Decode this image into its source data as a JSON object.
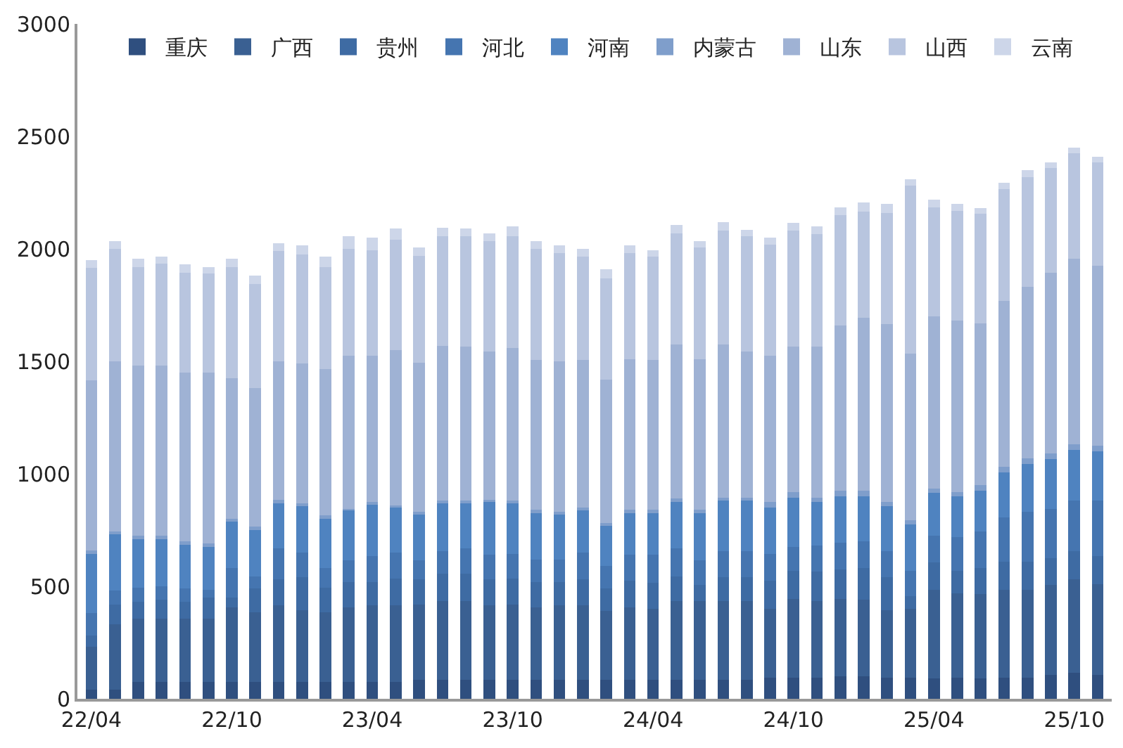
{
  "chart_data": {
    "type": "bar",
    "stacked": true,
    "categories": [
      "22/04",
      null,
      null,
      null,
      null,
      null,
      "22/10",
      null,
      null,
      null,
      null,
      null,
      "23/04",
      null,
      null,
      null,
      null,
      null,
      "23/10",
      null,
      null,
      null,
      null,
      null,
      "24/04",
      null,
      null,
      null,
      null,
      null,
      "24/10",
      null,
      null,
      null,
      null,
      null,
      "25/04",
      null,
      null,
      null,
      null,
      null,
      "25/10",
      null
    ],
    "ylim": [
      0,
      3000
    ],
    "yticks": [
      0,
      500,
      1000,
      1500,
      2000,
      2500,
      3000
    ],
    "legend": "top",
    "series": [
      {
        "name": "重庆",
        "color": "#2f4f7f",
        "values": [
          40,
          40,
          75,
          75,
          75,
          75,
          75,
          75,
          75,
          75,
          75,
          75,
          75,
          75,
          85,
          85,
          85,
          85,
          85,
          85,
          85,
          85,
          85,
          85,
          85,
          85,
          85,
          85,
          85,
          95,
          95,
          95,
          100,
          100,
          95,
          95,
          90,
          95,
          90,
          95,
          95,
          105,
          115,
          105
        ]
      },
      {
        "name": "广西",
        "color": "#3a6092",
        "values": [
          190,
          290,
          280,
          280,
          280,
          280,
          330,
          310,
          340,
          320,
          310,
          330,
          340,
          340,
          335,
          350,
          350,
          330,
          335,
          320,
          330,
          330,
          305,
          320,
          315,
          350,
          350,
          350,
          350,
          305,
          350,
          340,
          345,
          340,
          300,
          305,
          395,
          375,
          375,
          390,
          390,
          400,
          415,
          405
        ]
      },
      {
        "name": "贵州",
        "color": "#3e6ba3",
        "values": [
          50,
          90,
          75,
          85,
          75,
          95,
          45,
          105,
          115,
          145,
          110,
          115,
          105,
          120,
          110,
          120,
          120,
          115,
          115,
          115,
          105,
          115,
          100,
          120,
          115,
          110,
          70,
          105,
          105,
          125,
          125,
          130,
          130,
          140,
          145,
          55,
          120,
          100,
          115,
          125,
          125,
          120,
          125,
          125
        ]
      },
      {
        "name": "河北",
        "color": "#4575b0",
        "values": [
          100,
          60,
          65,
          60,
          60,
          35,
          130,
          55,
          140,
          110,
          85,
          95,
          115,
          115,
          85,
          100,
          115,
          110,
          110,
          100,
          100,
          120,
          100,
          115,
          125,
          125,
          110,
          115,
          115,
          120,
          105,
          115,
          120,
          120,
          115,
          115,
          120,
          150,
          165,
          195,
          220,
          220,
          225,
          245
        ]
      },
      {
        "name": "河南",
        "color": "#4f83c0",
        "values": [
          265,
          250,
          215,
          210,
          195,
          190,
          210,
          210,
          200,
          205,
          225,
          225,
          230,
          205,
          205,
          215,
          200,
          235,
          225,
          210,
          200,
          190,
          180,
          190,
          190,
          210,
          215,
          230,
          230,
          205,
          220,
          195,
          205,
          200,
          200,
          205,
          190,
          180,
          180,
          200,
          215,
          220,
          225,
          220
        ]
      },
      {
        "name": "内蒙古",
        "color": "#7f9ecb",
        "values": [
          15,
          15,
          15,
          15,
          15,
          15,
          10,
          10,
          15,
          15,
          10,
          5,
          10,
          5,
          10,
          10,
          10,
          10,
          10,
          10,
          10,
          10,
          10,
          10,
          10,
          10,
          10,
          10,
          10,
          25,
          25,
          20,
          25,
          25,
          20,
          20,
          20,
          20,
          25,
          25,
          25,
          25,
          25,
          25
        ]
      },
      {
        "name": "山东",
        "color": "#9fb2d4",
        "values": [
          755,
          755,
          755,
          755,
          750,
          760,
          625,
          615,
          615,
          620,
          650,
          680,
          650,
          690,
          665,
          690,
          685,
          660,
          680,
          665,
          670,
          655,
          640,
          670,
          665,
          685,
          670,
          680,
          650,
          650,
          645,
          670,
          735,
          770,
          790,
          740,
          765,
          760,
          720,
          740,
          760,
          805,
          825,
          800
        ]
      },
      {
        "name": "山西",
        "color": "#b8c5df",
        "values": [
          500,
          500,
          440,
          455,
          445,
          440,
          495,
          465,
          490,
          485,
          455,
          475,
          470,
          490,
          475,
          485,
          490,
          490,
          495,
          495,
          480,
          460,
          450,
          470,
          460,
          495,
          495,
          505,
          510,
          495,
          515,
          500,
          490,
          470,
          495,
          745,
          485,
          490,
          485,
          495,
          490,
          465,
          470,
          460
        ]
      },
      {
        "name": "云南",
        "color": "#cdd6e9",
        "values": [
          35,
          35,
          35,
          30,
          35,
          30,
          35,
          35,
          35,
          40,
          45,
          55,
          55,
          50,
          35,
          40,
          35,
          35,
          45,
          35,
          35,
          35,
          40,
          35,
          30,
          35,
          30,
          40,
          30,
          30,
          35,
          35,
          35,
          40,
          40,
          30,
          35,
          30,
          25,
          30,
          30,
          25,
          25,
          25
        ]
      }
    ]
  }
}
